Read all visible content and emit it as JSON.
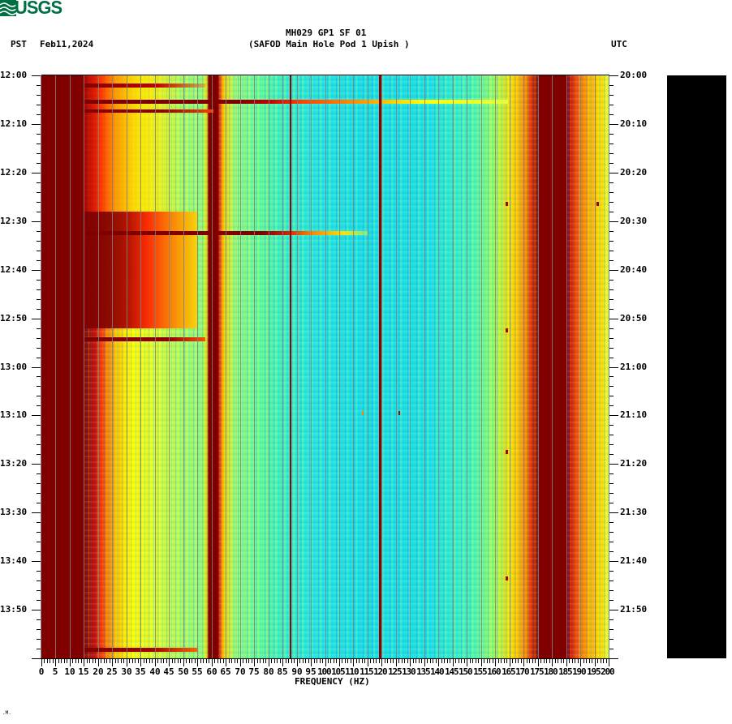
{
  "header": {
    "logo_text": "USGS",
    "title_line1": "MH029 GP1 SF 01",
    "title_line2": "(SAFOD Main Hole Pod 1 Upish )",
    "left_tz": "PST",
    "date": "Feb11,2024",
    "right_tz": "UTC"
  },
  "footer_mark": ".M.",
  "colors": {
    "usgs_green": "#006f41",
    "saturated": "#800000",
    "red": "#e00000",
    "orange": "#ff8000",
    "yellow": "#ffff00",
    "green": "#80ff80",
    "cyan": "#00e8f0",
    "blue": "#0090ff",
    "grid": "#808080"
  },
  "chart_data": {
    "type": "heatmap",
    "title": "MH029 GP1 SF 01 (SAFOD Main Hole Pod 1 Upish )",
    "subtitle": "PST Feb11,2024 / UTC",
    "xlabel": "FREQUENCY (HZ)",
    "ylabel_left": "PST",
    "ylabel_right": "UTC",
    "xlim": [
      0,
      200
    ],
    "x_ticks": [
      0,
      5,
      10,
      15,
      20,
      25,
      30,
      35,
      40,
      45,
      50,
      55,
      60,
      65,
      70,
      75,
      80,
      85,
      90,
      95,
      100,
      105,
      110,
      115,
      120,
      125,
      130,
      135,
      140,
      145,
      150,
      155,
      160,
      165,
      170,
      175,
      180,
      185,
      190,
      195,
      200
    ],
    "y_ticks_left": [
      "12:00",
      "12:10",
      "12:20",
      "12:30",
      "12:40",
      "12:50",
      "13:00",
      "13:10",
      "13:20",
      "13:30",
      "13:40",
      "13:50"
    ],
    "y_ticks_right": [
      "20:00",
      "20:10",
      "20:20",
      "20:30",
      "20:40",
      "20:50",
      "21:00",
      "21:10",
      "21:20",
      "21:30",
      "21:40",
      "21:50"
    ],
    "time_range_pst": [
      "12:00",
      "14:00"
    ],
    "grid": "vertical lines every 5 Hz",
    "colormap": "jet (blue low, dark red high/saturated)",
    "features": {
      "saturated_bands_hz": [
        [
          0,
          15
        ],
        [
          58,
          62
        ],
        [
          175,
          185
        ]
      ],
      "narrow_lines_hz": [
        88,
        120
      ],
      "high_energy_low_freq_hz": [
        15,
        35
      ],
      "high_energy_high_freq_hz": [
        185,
        200
      ],
      "quiet_band_hz": [
        95,
        160
      ],
      "broadband_events_pst": [
        "12:05",
        "12:06",
        "12:32",
        "12:54",
        "13:58"
      ],
      "strong_low_freq_period_pst": [
        "12:28",
        "12:52"
      ]
    }
  }
}
